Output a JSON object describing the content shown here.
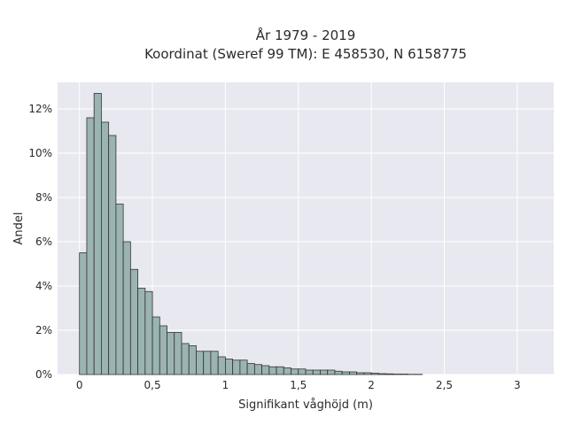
{
  "chart_data": {
    "type": "bar",
    "title_line1": "År 1979 - 2019",
    "title_line2": "Koordinat (Sweref 99 TM): E 458530, N 6158775",
    "xlabel": "Signifikant våghöjd (m)",
    "ylabel": "Andel",
    "xlim": [
      -0.15,
      3.25
    ],
    "ylim": [
      0,
      13.2
    ],
    "x_ticks": [
      0,
      0.5,
      1,
      1.5,
      2,
      2.5,
      3
    ],
    "x_tick_labels": [
      "0",
      "0,5",
      "1",
      "1,5",
      "2",
      "2,5",
      "3"
    ],
    "y_ticks": [
      0,
      2,
      4,
      6,
      8,
      10,
      12
    ],
    "y_tick_labels": [
      "0%",
      "2%",
      "4%",
      "6%",
      "8%",
      "10%",
      "12%"
    ],
    "bin_width": 0.05,
    "bin_start": 0,
    "values": [
      5.5,
      11.6,
      12.7,
      11.4,
      10.8,
      7.7,
      6.0,
      4.75,
      3.9,
      3.75,
      2.6,
      2.2,
      1.9,
      1.9,
      1.4,
      1.3,
      1.05,
      1.05,
      1.05,
      0.8,
      0.7,
      0.65,
      0.65,
      0.5,
      0.45,
      0.4,
      0.35,
      0.35,
      0.3,
      0.25,
      0.25,
      0.2,
      0.2,
      0.2,
      0.2,
      0.15,
      0.12,
      0.12,
      0.08,
      0.08,
      0.06,
      0.04,
      0.03,
      0.02,
      0.02,
      0.01,
      0.01
    ],
    "grid": true,
    "colors": {
      "bar_fill": "#9bb3b3",
      "bar_stroke": "#333333",
      "plot_bg": "#e8e8f0",
      "grid": "#ffffff"
    }
  }
}
